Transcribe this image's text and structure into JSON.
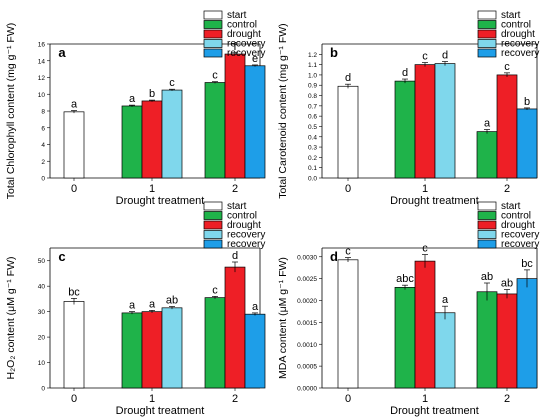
{
  "colors": {
    "start": "#ffffff",
    "control": "#1fb34a",
    "drought": "#ee1f26",
    "recovery_light": "#7fd7ec",
    "recovery_blue": "#1e9ee8"
  },
  "chart_data": [
    {
      "type": "bar",
      "panel_label": "a",
      "ylabel": "Total Chlorophyll content (mg g⁻¹ FW)",
      "xlabel": "Drought treatment",
      "ylim": [
        0,
        16
      ],
      "yticks": [
        "0",
        "2",
        "4",
        "6",
        "8",
        "10",
        "12",
        "14",
        "16"
      ],
      "groups": [
        "0",
        "1",
        "2"
      ],
      "legend": [
        {
          "label": "start",
          "color": "#ffffff"
        },
        {
          "label": "control",
          "color": "#1fb34a"
        },
        {
          "label": "drought",
          "color": "#ee1f26"
        },
        {
          "label": "recovery",
          "color": "#7fd7ec"
        },
        {
          "label": "recovery",
          "color": "#1e9ee8"
        }
      ],
      "bars": [
        {
          "group": 0,
          "color": "#ffffff",
          "value": 7.9,
          "err": 0.15,
          "letter": "a"
        },
        {
          "group": 1,
          "color": "#1fb34a",
          "value": 8.6,
          "err": 0.1,
          "letter": "a"
        },
        {
          "group": 1,
          "color": "#ee1f26",
          "value": 9.2,
          "err": 0.1,
          "letter": "b"
        },
        {
          "group": 1,
          "color": "#7fd7ec",
          "value": 10.5,
          "err": 0.1,
          "letter": "c"
        },
        {
          "group": 2,
          "color": "#1fb34a",
          "value": 11.4,
          "err": 0.1,
          "letter": "c"
        },
        {
          "group": 2,
          "color": "#ee1f26",
          "value": 14.8,
          "err": 0.15,
          "letter": "f"
        },
        {
          "group": 2,
          "color": "#1e9ee8",
          "value": 13.4,
          "err": 0.1,
          "letter": "e"
        }
      ]
    },
    {
      "type": "bar",
      "panel_label": "b",
      "ylabel": "Total Carotenoid content (mg g⁻¹ FW)",
      "xlabel": "Drought treatment",
      "ylim": [
        0,
        1.3
      ],
      "yticks": [
        "0.0",
        "0.1",
        "0.2",
        "0.3",
        "0.4",
        "0.5",
        "0.6",
        "0.7",
        "0.8",
        "0.9",
        "1.0",
        "1.1",
        "1.2"
      ],
      "groups": [
        "0",
        "1",
        "2"
      ],
      "legend": [
        {
          "label": "start",
          "color": "#ffffff"
        },
        {
          "label": "control",
          "color": "#1fb34a"
        },
        {
          "label": "drought",
          "color": "#ee1f26"
        },
        {
          "label": "recovery",
          "color": "#7fd7ec"
        },
        {
          "label": "recovery",
          "color": "#1e9ee8"
        }
      ],
      "bars": [
        {
          "group": 0,
          "color": "#ffffff",
          "value": 0.89,
          "err": 0.02,
          "letter": "d"
        },
        {
          "group": 1,
          "color": "#1fb34a",
          "value": 0.94,
          "err": 0.02,
          "letter": "d"
        },
        {
          "group": 1,
          "color": "#ee1f26",
          "value": 1.1,
          "err": 0.02,
          "letter": "c"
        },
        {
          "group": 1,
          "color": "#7fd7ec",
          "value": 1.11,
          "err": 0.02,
          "letter": "d"
        },
        {
          "group": 2,
          "color": "#1fb34a",
          "value": 0.45,
          "err": 0.02,
          "letter": "a"
        },
        {
          "group": 2,
          "color": "#ee1f26",
          "value": 1.0,
          "err": 0.02,
          "letter": "c"
        },
        {
          "group": 2,
          "color": "#1e9ee8",
          "value": 0.67,
          "err": 0.01,
          "letter": "b"
        }
      ]
    },
    {
      "type": "bar",
      "panel_label": "c",
      "ylabel": "H₂O₂ content (μM g⁻¹ FW)",
      "xlabel": "Drought treatment",
      "ylim": [
        0,
        55
      ],
      "yticks": [
        "0",
        "10",
        "20",
        "30",
        "40",
        "50"
      ],
      "groups": [
        "0",
        "1",
        "2"
      ],
      "legend": [
        {
          "label": "start",
          "color": "#ffffff"
        },
        {
          "label": "control",
          "color": "#1fb34a"
        },
        {
          "label": "drought",
          "color": "#ee1f26"
        },
        {
          "label": "recovery",
          "color": "#7fd7ec"
        },
        {
          "label": "recovery",
          "color": "#1e9ee8"
        }
      ],
      "bars": [
        {
          "group": 0,
          "color": "#ffffff",
          "value": 34,
          "err": 1.2,
          "letter": "bc"
        },
        {
          "group": 1,
          "color": "#1fb34a",
          "value": 29.5,
          "err": 0.5,
          "letter": "a"
        },
        {
          "group": 1,
          "color": "#ee1f26",
          "value": 30,
          "err": 0.5,
          "letter": "a"
        },
        {
          "group": 1,
          "color": "#7fd7ec",
          "value": 31.5,
          "err": 0.5,
          "letter": "ab"
        },
        {
          "group": 2,
          "color": "#1fb34a",
          "value": 35.5,
          "err": 0.5,
          "letter": "c"
        },
        {
          "group": 2,
          "color": "#ee1f26",
          "value": 47.5,
          "err": 2,
          "letter": "d"
        },
        {
          "group": 2,
          "color": "#1e9ee8",
          "value": 29,
          "err": 0.5,
          "letter": "a"
        }
      ]
    },
    {
      "type": "bar",
      "panel_label": "d",
      "ylabel": "MDA content (μM g⁻¹ FW)",
      "xlabel": "Drought treatment",
      "ylim": [
        0,
        0.0032
      ],
      "yticks": [
        "0.0000",
        "0.0005",
        "0.0010",
        "0.0015",
        "0.0020",
        "0.0025",
        "0.0030"
      ],
      "groups": [
        "0",
        "1",
        "2"
      ],
      "legend": [
        {
          "label": "start",
          "color": "#ffffff"
        },
        {
          "label": "control",
          "color": "#1fb34a"
        },
        {
          "label": "drought",
          "color": "#ee1f26"
        },
        {
          "label": "recovery",
          "color": "#7fd7ec"
        },
        {
          "label": "recovery",
          "color": "#1e9ee8"
        }
      ],
      "bars": [
        {
          "group": 0,
          "color": "#ffffff",
          "value": 0.00293,
          "err": 5e-05,
          "letter": "c"
        },
        {
          "group": 1,
          "color": "#1fb34a",
          "value": 0.0023,
          "err": 5e-05,
          "letter": "abc"
        },
        {
          "group": 1,
          "color": "#ee1f26",
          "value": 0.0029,
          "err": 0.00015,
          "letter": "c"
        },
        {
          "group": 1,
          "color": "#7fd7ec",
          "value": 0.00172,
          "err": 0.00015,
          "letter": "a"
        },
        {
          "group": 2,
          "color": "#1fb34a",
          "value": 0.0022,
          "err": 0.0002,
          "letter": "ab"
        },
        {
          "group": 2,
          "color": "#ee1f26",
          "value": 0.00215,
          "err": 0.0001,
          "letter": "ab"
        },
        {
          "group": 2,
          "color": "#1e9ee8",
          "value": 0.0025,
          "err": 0.0002,
          "letter": "bc"
        }
      ]
    }
  ]
}
